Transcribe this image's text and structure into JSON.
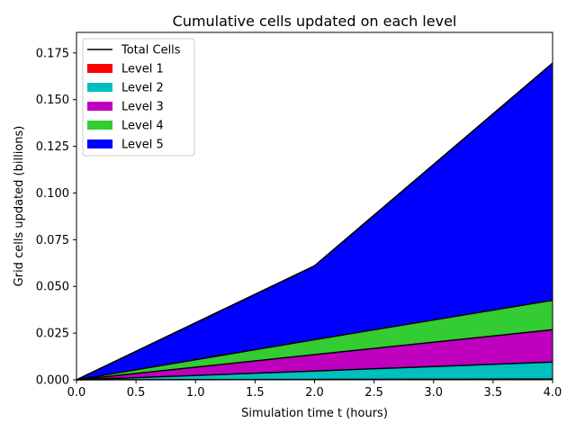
{
  "chart_data": {
    "type": "area",
    "stacked": true,
    "title": "Cumulative cells updated on each level",
    "xlabel": "Simulation time t (hours)",
    "ylabel": "Grid cells updated (billions)",
    "xlim": [
      0.0,
      4.0
    ],
    "ylim": [
      0.0,
      0.186
    ],
    "x": [
      0.0,
      2.0,
      4.0
    ],
    "x_ticks": [
      0.0,
      0.5,
      1.0,
      1.5,
      2.0,
      2.5,
      3.0,
      3.5,
      4.0
    ],
    "x_tick_labels": [
      "0.0",
      "0.5",
      "1.0",
      "1.5",
      "2.0",
      "2.5",
      "3.0",
      "3.5",
      "4.0"
    ],
    "y_ticks": [
      0.0,
      0.025,
      0.05,
      0.075,
      0.1,
      0.125,
      0.15,
      0.175
    ],
    "y_tick_labels": [
      "0.000",
      "0.025",
      "0.050",
      "0.075",
      "0.100",
      "0.125",
      "0.150",
      "0.175"
    ],
    "grid": false,
    "legend_position": "top-left",
    "total_line": {
      "name": "Total Cells",
      "color": "#000000",
      "values": [
        0.0,
        0.061,
        0.1695
      ]
    },
    "series": [
      {
        "name": "Level 1",
        "color": "#ff0000",
        "values": [
          0.0,
          0.0002,
          0.0004
        ]
      },
      {
        "name": "Level 2",
        "color": "#00bfbf",
        "values": [
          0.0,
          0.0045,
          0.0091
        ]
      },
      {
        "name": "Level 3",
        "color": "#bf00bf",
        "values": [
          0.0,
          0.0088,
          0.0173
        ]
      },
      {
        "name": "Level 4",
        "color": "#33cc33",
        "values": [
          0.0,
          0.008,
          0.0158
        ]
      },
      {
        "name": "Level 5",
        "color": "#0000ff",
        "values": [
          0.0,
          0.0395,
          0.1269
        ]
      }
    ]
  }
}
